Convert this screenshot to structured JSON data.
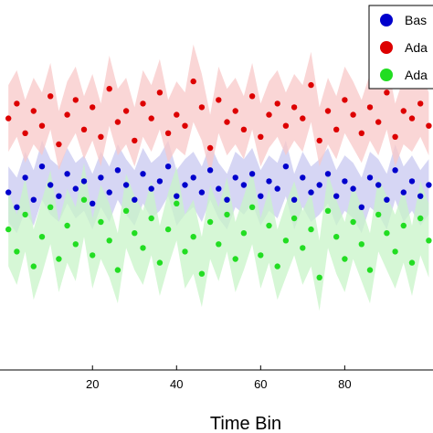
{
  "chart_data": {
    "type": "scatter",
    "xlabel": "Time Bin",
    "xlim": [
      -2,
      101
    ],
    "ylim": [
      0,
      1
    ],
    "xticks": [
      20,
      40,
      60,
      80
    ],
    "grid": false,
    "legend_position": "top-right",
    "series": [
      {
        "name": "Bas",
        "color": "#0000cc",
        "band_color": "#c8c8f0",
        "x": [
          0,
          2,
          4,
          6,
          8,
          10,
          12,
          14,
          16,
          18,
          20,
          22,
          24,
          26,
          28,
          30,
          32,
          34,
          36,
          38,
          40,
          42,
          44,
          46,
          48,
          50,
          52,
          54,
          56,
          58,
          60,
          62,
          64,
          66,
          68,
          70,
          72,
          74,
          76,
          78,
          80,
          82,
          84,
          86,
          88,
          90,
          92,
          94,
          96,
          98,
          100
        ],
        "y": [
          0.48,
          0.44,
          0.52,
          0.46,
          0.55,
          0.5,
          0.47,
          0.53,
          0.49,
          0.51,
          0.45,
          0.52,
          0.48,
          0.54,
          0.5,
          0.46,
          0.53,
          0.49,
          0.51,
          0.55,
          0.47,
          0.5,
          0.52,
          0.48,
          0.54,
          0.49,
          0.46,
          0.52,
          0.5,
          0.53,
          0.47,
          0.51,
          0.49,
          0.55,
          0.46,
          0.52,
          0.48,
          0.5,
          0.53,
          0.47,
          0.51,
          0.49,
          0.44,
          0.52,
          0.5,
          0.46,
          0.54,
          0.48,
          0.51,
          0.47,
          0.5
        ],
        "band_low": [
          0.4,
          0.37,
          0.43,
          0.39,
          0.46,
          0.42,
          0.4,
          0.45,
          0.41,
          0.43,
          0.38,
          0.44,
          0.4,
          0.46,
          0.42,
          0.39,
          0.45,
          0.41,
          0.43,
          0.47,
          0.39,
          0.42,
          0.44,
          0.4,
          0.46,
          0.41,
          0.38,
          0.44,
          0.42,
          0.45,
          0.39,
          0.43,
          0.41,
          0.47,
          0.38,
          0.44,
          0.4,
          0.42,
          0.45,
          0.39,
          0.43,
          0.41,
          0.37,
          0.44,
          0.42,
          0.38,
          0.46,
          0.4,
          0.43,
          0.39,
          0.42
        ],
        "band_high": [
          0.55,
          0.52,
          0.59,
          0.54,
          0.62,
          0.57,
          0.55,
          0.6,
          0.56,
          0.58,
          0.53,
          0.59,
          0.55,
          0.61,
          0.57,
          0.54,
          0.6,
          0.56,
          0.58,
          0.62,
          0.54,
          0.57,
          0.59,
          0.55,
          0.61,
          0.56,
          0.53,
          0.59,
          0.57,
          0.6,
          0.54,
          0.58,
          0.56,
          0.62,
          0.53,
          0.59,
          0.55,
          0.57,
          0.6,
          0.54,
          0.58,
          0.56,
          0.52,
          0.59,
          0.57,
          0.53,
          0.61,
          0.55,
          0.58,
          0.54,
          0.57
        ]
      },
      {
        "name": "Ada",
        "color": "#dd0000",
        "band_color": "#f8c8c8",
        "x": [
          0,
          2,
          4,
          6,
          8,
          10,
          12,
          14,
          16,
          18,
          20,
          22,
          24,
          26,
          28,
          30,
          32,
          34,
          36,
          38,
          40,
          42,
          44,
          46,
          48,
          50,
          52,
          54,
          56,
          58,
          60,
          62,
          64,
          66,
          68,
          70,
          72,
          74,
          76,
          78,
          80,
          82,
          84,
          86,
          88,
          90,
          92,
          94,
          96,
          98,
          100
        ],
        "y": [
          0.68,
          0.72,
          0.64,
          0.7,
          0.66,
          0.74,
          0.61,
          0.69,
          0.73,
          0.65,
          0.71,
          0.63,
          0.76,
          0.67,
          0.7,
          0.62,
          0.72,
          0.68,
          0.75,
          0.64,
          0.69,
          0.66,
          0.78,
          0.71,
          0.6,
          0.73,
          0.67,
          0.7,
          0.65,
          0.74,
          0.63,
          0.69,
          0.72,
          0.66,
          0.71,
          0.68,
          0.77,
          0.62,
          0.7,
          0.65,
          0.73,
          0.69,
          0.64,
          0.71,
          0.67,
          0.75,
          0.63,
          0.7,
          0.68,
          0.72,
          0.66
        ],
        "band_low": [
          0.59,
          0.63,
          0.56,
          0.61,
          0.58,
          0.65,
          0.54,
          0.6,
          0.64,
          0.57,
          0.62,
          0.55,
          0.66,
          0.58,
          0.61,
          0.55,
          0.63,
          0.59,
          0.65,
          0.56,
          0.6,
          0.58,
          0.67,
          0.62,
          0.53,
          0.64,
          0.58,
          0.61,
          0.57,
          0.65,
          0.55,
          0.6,
          0.63,
          0.58,
          0.62,
          0.59,
          0.67,
          0.55,
          0.61,
          0.57,
          0.64,
          0.6,
          0.56,
          0.62,
          0.58,
          0.65,
          0.55,
          0.61,
          0.59,
          0.63,
          0.58
        ],
        "band_high": [
          0.77,
          0.81,
          0.73,
          0.79,
          0.75,
          0.83,
          0.7,
          0.78,
          0.82,
          0.74,
          0.8,
          0.72,
          0.85,
          0.76,
          0.79,
          0.71,
          0.81,
          0.77,
          0.84,
          0.73,
          0.78,
          0.75,
          0.88,
          0.8,
          0.69,
          0.82,
          0.76,
          0.79,
          0.74,
          0.83,
          0.72,
          0.78,
          0.81,
          0.75,
          0.8,
          0.77,
          0.86,
          0.71,
          0.79,
          0.74,
          0.82,
          0.78,
          0.73,
          0.8,
          0.76,
          0.84,
          0.72,
          0.79,
          0.77,
          0.81,
          0.75
        ]
      },
      {
        "name": "Ada",
        "color": "#22dd22",
        "band_color": "#c8f4c8",
        "x": [
          0,
          2,
          4,
          6,
          8,
          10,
          12,
          14,
          16,
          18,
          20,
          22,
          24,
          26,
          28,
          30,
          32,
          34,
          36,
          38,
          40,
          42,
          44,
          46,
          48,
          50,
          52,
          54,
          56,
          58,
          60,
          62,
          64,
          66,
          68,
          70,
          72,
          74,
          76,
          78,
          80,
          82,
          84,
          86,
          88,
          90,
          92,
          94,
          96,
          98,
          100
        ],
        "y": [
          0.38,
          0.32,
          0.42,
          0.28,
          0.36,
          0.44,
          0.3,
          0.39,
          0.34,
          0.46,
          0.31,
          0.4,
          0.35,
          0.27,
          0.43,
          0.37,
          0.33,
          0.41,
          0.29,
          0.38,
          0.45,
          0.32,
          0.36,
          0.26,
          0.4,
          0.34,
          0.42,
          0.3,
          0.37,
          0.44,
          0.31,
          0.39,
          0.28,
          0.35,
          0.41,
          0.33,
          0.38,
          0.25,
          0.43,
          0.36,
          0.3,
          0.4,
          0.34,
          0.27,
          0.42,
          0.37,
          0.32,
          0.39,
          0.29,
          0.41,
          0.35
        ],
        "band_low": [
          0.28,
          0.23,
          0.32,
          0.19,
          0.26,
          0.34,
          0.21,
          0.29,
          0.24,
          0.36,
          0.22,
          0.3,
          0.25,
          0.18,
          0.33,
          0.27,
          0.23,
          0.31,
          0.2,
          0.28,
          0.35,
          0.22,
          0.26,
          0.17,
          0.3,
          0.24,
          0.32,
          0.21,
          0.27,
          0.34,
          0.22,
          0.29,
          0.19,
          0.25,
          0.31,
          0.23,
          0.28,
          0.16,
          0.33,
          0.26,
          0.21,
          0.3,
          0.24,
          0.18,
          0.32,
          0.27,
          0.22,
          0.29,
          0.2,
          0.31,
          0.25
        ],
        "band_high": [
          0.48,
          0.42,
          0.52,
          0.38,
          0.46,
          0.54,
          0.4,
          0.49,
          0.44,
          0.56,
          0.41,
          0.5,
          0.45,
          0.37,
          0.53,
          0.47,
          0.43,
          0.51,
          0.39,
          0.48,
          0.55,
          0.42,
          0.46,
          0.36,
          0.5,
          0.44,
          0.52,
          0.4,
          0.47,
          0.54,
          0.41,
          0.49,
          0.38,
          0.45,
          0.51,
          0.43,
          0.48,
          0.35,
          0.53,
          0.46,
          0.4,
          0.5,
          0.44,
          0.37,
          0.52,
          0.47,
          0.42,
          0.49,
          0.39,
          0.51,
          0.45
        ]
      }
    ]
  }
}
